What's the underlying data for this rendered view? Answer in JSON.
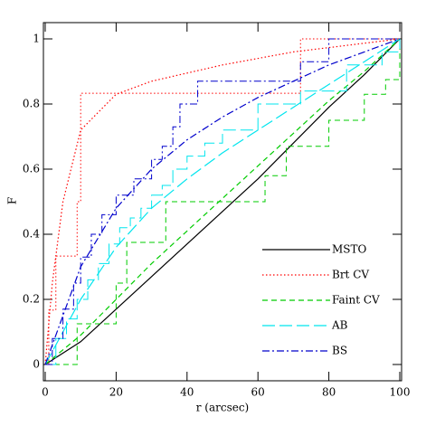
{
  "chart_data": {
    "type": "line",
    "xlabel": "r (arcsec)",
    "ylabel": "F",
    "xlim": [
      0,
      100
    ],
    "ylim": [
      -0.05,
      1.05
    ],
    "xticks": [
      0,
      20,
      40,
      60,
      80,
      100
    ],
    "yticks": [
      0,
      0.2,
      0.4,
      0.6,
      0.8,
      1
    ],
    "series": [
      {
        "name": "MSTO",
        "color": "#000000",
        "dash": "none",
        "x": [
          0,
          10,
          20,
          30,
          40,
          50,
          60,
          70,
          80,
          90,
          100
        ],
        "values": [
          0,
          0.07,
          0.17,
          0.27,
          0.37,
          0.47,
          0.57,
          0.68,
          0.79,
          0.89,
          1
        ]
      },
      {
        "name": "Brt CV",
        "color": "#ff0000",
        "dash": "1.5,2.5",
        "x": [
          0,
          2,
          5,
          10,
          20,
          30,
          50,
          70,
          100
        ],
        "values": [
          0,
          0.25,
          0.5,
          0.72,
          0.83,
          0.87,
          0.92,
          0.96,
          1
        ],
        "step_x": [
          0,
          1,
          3,
          9,
          10,
          72,
          100
        ],
        "step_values": [
          0,
          0.167,
          0.333,
          0.5,
          0.833,
          1,
          1
        ]
      },
      {
        "name": "Faint CV",
        "color": "#00cc00",
        "dash": "6,4",
        "x": [
          0,
          10,
          20,
          30,
          40,
          50,
          60,
          70,
          80,
          90,
          100
        ],
        "values": [
          0,
          0.09,
          0.2,
          0.31,
          0.41,
          0.51,
          0.61,
          0.71,
          0.81,
          0.9,
          1
        ],
        "step_x": [
          0,
          9,
          20,
          23,
          34,
          62,
          68,
          80,
          90,
          96,
          100
        ],
        "step_values": [
          0,
          0.125,
          0.25,
          0.375,
          0.5,
          0.58,
          0.67,
          0.75,
          0.83,
          0.875,
          1
        ]
      },
      {
        "name": "AB",
        "color": "#00e5ee",
        "dash": "14,5",
        "x": [
          0,
          10,
          20,
          30,
          40,
          50,
          60,
          70,
          80,
          90,
          100
        ],
        "values": [
          0,
          0.2,
          0.36,
          0.48,
          0.57,
          0.65,
          0.72,
          0.79,
          0.86,
          0.93,
          1
        ],
        "step_x": [
          0,
          3,
          6,
          9,
          12,
          15,
          18,
          21,
          24,
          27,
          30,
          33,
          36,
          40,
          45,
          50,
          60,
          72,
          85,
          95,
          100
        ],
        "step_values": [
          0,
          0.08,
          0.14,
          0.2,
          0.26,
          0.31,
          0.37,
          0.42,
          0.45,
          0.48,
          0.52,
          0.55,
          0.6,
          0.64,
          0.68,
          0.72,
          0.8,
          0.84,
          0.92,
          0.96,
          1
        ]
      },
      {
        "name": "BS",
        "color": "#0000cc",
        "dash": "8,3,2,3",
        "x": [
          0,
          10,
          20,
          30,
          40,
          50,
          60,
          70,
          80,
          90,
          100
        ],
        "values": [
          0,
          0.3,
          0.48,
          0.6,
          0.69,
          0.76,
          0.82,
          0.87,
          0.92,
          0.96,
          1
        ],
        "step_x": [
          0,
          2,
          5,
          8,
          10,
          13,
          16,
          20,
          25,
          30,
          33,
          36,
          38,
          43,
          50,
          72,
          80,
          100
        ],
        "step_values": [
          0,
          0.08,
          0.17,
          0.25,
          0.33,
          0.4,
          0.46,
          0.52,
          0.57,
          0.63,
          0.67,
          0.73,
          0.8,
          0.87,
          0.87,
          0.93,
          1,
          1
        ]
      }
    ]
  }
}
